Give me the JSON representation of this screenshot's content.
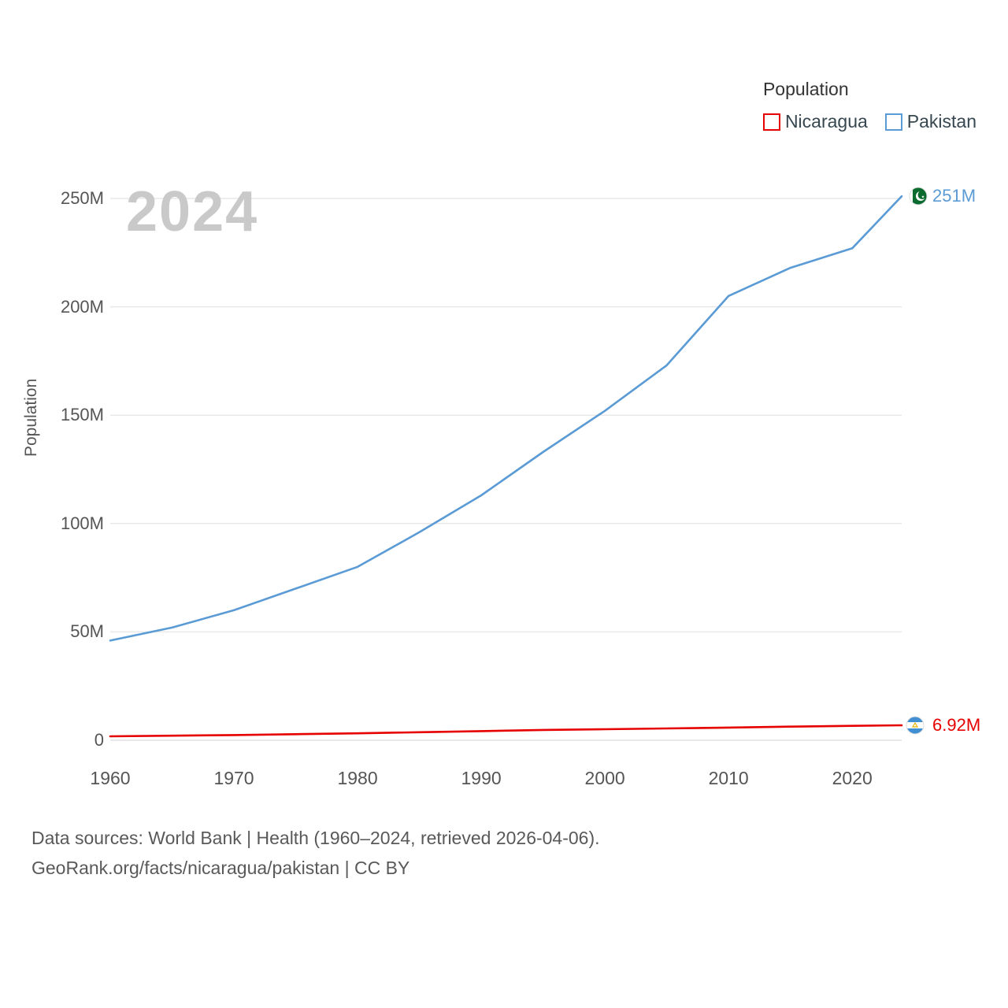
{
  "legend": {
    "title": "Population",
    "items": [
      {
        "label": "Nicaragua",
        "color": "#e60000"
      },
      {
        "label": "Pakistan",
        "color": "#5b9bd5"
      }
    ]
  },
  "watermark": "2024",
  "chart_data": {
    "type": "line",
    "title": "Population",
    "xlabel": "",
    "ylabel": "Population",
    "x": [
      1960,
      1965,
      1970,
      1975,
      1980,
      1985,
      1990,
      1995,
      2000,
      2005,
      2010,
      2015,
      2020,
      2024
    ],
    "series": [
      {
        "name": "Nicaragua",
        "color": "#e60000",
        "unit": "millions",
        "values": [
          1.8,
          2.1,
          2.4,
          2.8,
          3.2,
          3.7,
          4.2,
          4.75,
          5.1,
          5.45,
          5.85,
          6.3,
          6.65,
          6.92
        ],
        "end_label": "6.92M",
        "end_flag": "nicaragua-flag"
      },
      {
        "name": "Pakistan",
        "color": "#5b9bd5",
        "unit": "millions",
        "values": [
          46,
          52,
          60,
          70,
          80,
          96,
          113,
          133,
          152,
          173,
          205,
          218,
          227,
          251
        ],
        "end_label": "251M",
        "end_flag": "pakistan-flag"
      }
    ],
    "ylim": [
      0,
      250
    ],
    "xlim": [
      1960,
      2024
    ],
    "grid": true,
    "legend_position": "top-right",
    "y_ticks": [
      {
        "value": 0,
        "label": "0"
      },
      {
        "value": 50,
        "label": "50M"
      },
      {
        "value": 100,
        "label": "100M"
      },
      {
        "value": 150,
        "label": "150M"
      },
      {
        "value": 200,
        "label": "200M"
      },
      {
        "value": 250,
        "label": "250M"
      }
    ],
    "x_ticks": [
      {
        "value": 1960,
        "label": "1960"
      },
      {
        "value": 1970,
        "label": "1970"
      },
      {
        "value": 1980,
        "label": "1980"
      },
      {
        "value": 1990,
        "label": "1990"
      },
      {
        "value": 2000,
        "label": "2000"
      },
      {
        "value": 2010,
        "label": "2010"
      },
      {
        "value": 2020,
        "label": "2020"
      }
    ]
  },
  "footer": {
    "line1": "Data sources: World Bank | Health (1960–2024, retrieved 2026-04-06).",
    "line2": "GeoRank.org/facts/nicaragua/pakistan | CC BY"
  }
}
